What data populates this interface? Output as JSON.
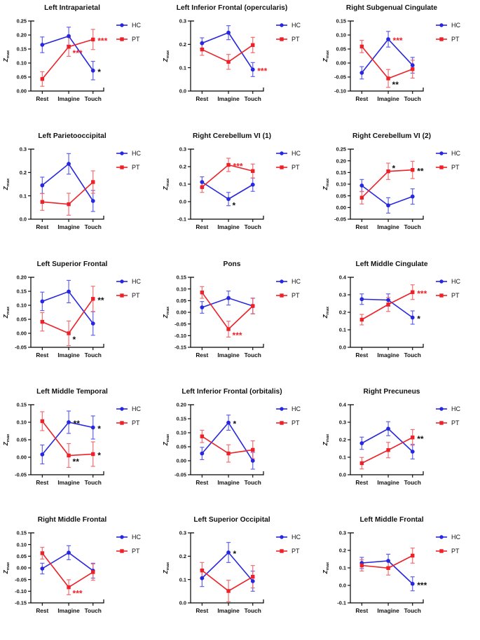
{
  "figure": {
    "ylabel": {
      "text": "Z",
      "sub": "max"
    },
    "x_categories": [
      "Rest",
      "Imagine",
      "Touch"
    ],
    "legend": [
      {
        "label": "HC",
        "marker": "circle"
      },
      {
        "label": "PT",
        "marker": "square"
      }
    ]
  },
  "style": {
    "hc_color": "#2727e0",
    "pt_color": "#ee2128",
    "hc_err_color": "#5b5bee",
    "pt_err_color": "#f2686c",
    "annotation_red": "#ee2128",
    "annotation_black": "#111111",
    "axis_color": "#000000"
  },
  "chart_data": [
    {
      "type": "line",
      "title": "Left Intraparietal",
      "categories": [
        "Rest",
        "Imagine",
        "Touch"
      ],
      "ylim": [
        0.0,
        0.25
      ],
      "ystep": 0.05,
      "decimals": 2,
      "series": [
        {
          "name": "HC",
          "values": [
            0.165,
            0.196,
            0.073
          ],
          "errors": [
            0.028,
            0.032,
            0.033
          ]
        },
        {
          "name": "PT",
          "values": [
            0.043,
            0.158,
            0.184
          ],
          "errors": [
            0.026,
            0.034,
            0.036
          ]
        }
      ],
      "annotations": [
        {
          "series": "pt",
          "x": 1,
          "text": "***",
          "color": "red",
          "placement": "below-right"
        },
        {
          "series": "pt",
          "x": 2,
          "text": "***",
          "color": "red",
          "placement": "right"
        },
        {
          "series": "hc",
          "x": 2,
          "text": "*",
          "color": "black",
          "placement": "right"
        }
      ]
    },
    {
      "type": "line",
      "title": "Left Inferior Frontal (opercularis)",
      "categories": [
        "Rest",
        "Imagine",
        "Touch"
      ],
      "ylim": [
        0.0,
        0.3
      ],
      "ystep": 0.1,
      "decimals": 1,
      "series": [
        {
          "name": "HC",
          "values": [
            0.205,
            0.25,
            0.092
          ],
          "errors": [
            0.023,
            0.03,
            0.03
          ]
        },
        {
          "name": "PT",
          "values": [
            0.178,
            0.125,
            0.197
          ],
          "errors": [
            0.025,
            0.032,
            0.033
          ]
        }
      ],
      "annotations": [
        {
          "series": "hc",
          "x": 2,
          "text": "***",
          "color": "red",
          "placement": "right"
        }
      ]
    },
    {
      "type": "line",
      "title": "Right Subgenual Cingulate",
      "categories": [
        "Rest",
        "Imagine",
        "Touch"
      ],
      "ylim": [
        -0.1,
        0.15
      ],
      "ystep": 0.05,
      "decimals": 2,
      "series": [
        {
          "name": "HC",
          "values": [
            -0.035,
            0.085,
            -0.008
          ],
          "errors": [
            0.022,
            0.028,
            0.028
          ]
        },
        {
          "name": "PT",
          "values": [
            0.059,
            -0.055,
            -0.022
          ],
          "errors": [
            0.022,
            0.032,
            0.032
          ]
        }
      ],
      "annotations": [
        {
          "series": "hc",
          "x": 1,
          "text": "***",
          "color": "red",
          "placement": "right"
        },
        {
          "series": "pt",
          "x": 1,
          "text": "**",
          "color": "black",
          "placement": "below-right"
        }
      ]
    },
    {
      "type": "line",
      "title": "Left Parietooccipital",
      "categories": [
        "Rest",
        "Imagine",
        "Touch"
      ],
      "ylim": [
        0.0,
        0.3
      ],
      "ystep": 0.1,
      "decimals": 1,
      "series": [
        {
          "name": "HC",
          "values": [
            0.145,
            0.237,
            0.078
          ],
          "errors": [
            0.035,
            0.044,
            0.045
          ]
        },
        {
          "name": "PT",
          "values": [
            0.074,
            0.064,
            0.159
          ],
          "errors": [
            0.036,
            0.047,
            0.048
          ]
        }
      ],
      "annotations": []
    },
    {
      "type": "line",
      "title": "Right Cerebellum VI (1)",
      "categories": [
        "Rest",
        "Imagine",
        "Touch"
      ],
      "ylim": [
        -0.1,
        0.3
      ],
      "ystep": 0.1,
      "decimals": 1,
      "series": [
        {
          "name": "HC",
          "values": [
            0.112,
            0.015,
            0.097
          ],
          "errors": [
            0.03,
            0.038,
            0.038
          ]
        },
        {
          "name": "PT",
          "values": [
            0.083,
            0.21,
            0.175
          ],
          "errors": [
            0.03,
            0.038,
            0.04
          ]
        }
      ],
      "annotations": [
        {
          "series": "pt",
          "x": 1,
          "text": "***",
          "color": "red",
          "placement": "right"
        },
        {
          "series": "hc",
          "x": 1,
          "text": "*",
          "color": "black",
          "placement": "below-right"
        }
      ]
    },
    {
      "type": "line",
      "title": "Right Cerebellum VI (2)",
      "categories": [
        "Rest",
        "Imagine",
        "Touch"
      ],
      "ylim": [
        -0.05,
        0.25
      ],
      "ystep": 0.05,
      "decimals": 2,
      "series": [
        {
          "name": "HC",
          "values": [
            0.094,
            0.009,
            0.047
          ],
          "errors": [
            0.026,
            0.033,
            0.033
          ]
        },
        {
          "name": "PT",
          "values": [
            0.042,
            0.155,
            0.161
          ],
          "errors": [
            0.027,
            0.035,
            0.037
          ]
        }
      ],
      "annotations": [
        {
          "series": "pt",
          "x": 1,
          "text": "*",
          "color": "black",
          "placement": "above-right"
        },
        {
          "series": "pt",
          "x": 2,
          "text": "**",
          "color": "black",
          "placement": "right"
        }
      ]
    },
    {
      "type": "line",
      "title": "Left Superior Frontal",
      "categories": [
        "Rest",
        "Imagine",
        "Touch"
      ],
      "ylim": [
        -0.05,
        0.2
      ],
      "ystep": 0.05,
      "decimals": 2,
      "series": [
        {
          "name": "HC",
          "values": [
            0.114,
            0.149,
            0.035
          ],
          "errors": [
            0.033,
            0.04,
            0.042
          ]
        },
        {
          "name": "PT",
          "values": [
            0.041,
            0.0,
            0.123
          ],
          "errors": [
            0.033,
            0.044,
            0.045
          ]
        }
      ],
      "annotations": [
        {
          "series": "pt",
          "x": 1,
          "text": "*",
          "color": "black",
          "placement": "below-right"
        },
        {
          "series": "pt",
          "x": 2,
          "text": "**",
          "color": "black",
          "placement": "right"
        }
      ]
    },
    {
      "type": "line",
      "title": "Pons",
      "categories": [
        "Rest",
        "Imagine",
        "Touch"
      ],
      "ylim": [
        -0.15,
        0.15
      ],
      "ystep": 0.05,
      "decimals": 2,
      "series": [
        {
          "name": "HC",
          "values": [
            0.021,
            0.061,
            0.027
          ],
          "errors": [
            0.025,
            0.03,
            0.033
          ]
        },
        {
          "name": "PT",
          "values": [
            0.085,
            -0.072,
            0.027
          ],
          "errors": [
            0.025,
            0.034,
            0.034
          ]
        }
      ],
      "annotations": [
        {
          "series": "pt",
          "x": 1,
          "text": "***",
          "color": "red",
          "placement": "below-right"
        }
      ]
    },
    {
      "type": "line",
      "title": "Left Middle Cingulate",
      "categories": [
        "Rest",
        "Imagine",
        "Touch"
      ],
      "ylim": [
        0.0,
        0.4
      ],
      "ystep": 0.1,
      "decimals": 1,
      "series": [
        {
          "name": "HC",
          "values": [
            0.275,
            0.27,
            0.17
          ],
          "errors": [
            0.03,
            0.035,
            0.038
          ]
        },
        {
          "name": "PT",
          "values": [
            0.158,
            0.245,
            0.315
          ],
          "errors": [
            0.03,
            0.04,
            0.042
          ]
        }
      ],
      "annotations": [
        {
          "series": "pt",
          "x": 2,
          "text": "***",
          "color": "red",
          "placement": "right"
        },
        {
          "series": "hc",
          "x": 2,
          "text": "*",
          "color": "black",
          "placement": "right"
        }
      ]
    },
    {
      "type": "line",
      "title": "Left Middle Temporal",
      "categories": [
        "Rest",
        "Imagine",
        "Touch"
      ],
      "ylim": [
        -0.05,
        0.15
      ],
      "ystep": 0.05,
      "decimals": 2,
      "series": [
        {
          "name": "HC",
          "values": [
            0.008,
            0.1,
            0.085
          ],
          "errors": [
            0.027,
            0.032,
            0.033
          ]
        },
        {
          "name": "PT",
          "values": [
            0.103,
            0.005,
            0.009
          ],
          "errors": [
            0.027,
            0.034,
            0.035
          ]
        }
      ],
      "annotations": [
        {
          "series": "hc",
          "x": 1,
          "text": "**",
          "color": "black",
          "placement": "right"
        },
        {
          "series": "hc",
          "x": 2,
          "text": "*",
          "color": "black",
          "placement": "right"
        },
        {
          "series": "pt",
          "x": 1,
          "text": "**",
          "color": "black",
          "placement": "below-right"
        },
        {
          "series": "pt",
          "x": 2,
          "text": "*",
          "color": "black",
          "placement": "right"
        }
      ]
    },
    {
      "type": "line",
      "title": "Left Inferior Frontal (orbitalis)",
      "categories": [
        "Rest",
        "Imagine",
        "Touch"
      ],
      "ylim": [
        -0.05,
        0.2
      ],
      "ystep": 0.05,
      "decimals": 2,
      "series": [
        {
          "name": "HC",
          "values": [
            0.026,
            0.136,
            0.0
          ],
          "errors": [
            0.022,
            0.027,
            0.03
          ]
        },
        {
          "name": "PT",
          "values": [
            0.087,
            0.026,
            0.039
          ],
          "errors": [
            0.022,
            0.031,
            0.032
          ]
        }
      ],
      "annotations": [
        {
          "series": "hc",
          "x": 1,
          "text": "*",
          "color": "black",
          "placement": "right"
        }
      ]
    },
    {
      "type": "line",
      "title": "Right Precuneus",
      "categories": [
        "Rest",
        "Imagine",
        "Touch"
      ],
      "ylim": [
        0.0,
        0.4
      ],
      "ystep": 0.1,
      "decimals": 1,
      "series": [
        {
          "name": "HC",
          "values": [
            0.18,
            0.263,
            0.132
          ],
          "errors": [
            0.035,
            0.04,
            0.042
          ]
        },
        {
          "name": "PT",
          "values": [
            0.066,
            0.141,
            0.213
          ],
          "errors": [
            0.033,
            0.044,
            0.045
          ]
        }
      ],
      "annotations": [
        {
          "series": "pt",
          "x": 2,
          "text": "**",
          "color": "black",
          "placement": "right"
        }
      ]
    },
    {
      "type": "line",
      "title": "Right Middle Frontal",
      "categories": [
        "Rest",
        "Imagine",
        "Touch"
      ],
      "ylim": [
        -0.15,
        0.15
      ],
      "ystep": 0.05,
      "decimals": 2,
      "series": [
        {
          "name": "HC",
          "values": [
            -0.003,
            0.065,
            -0.012
          ],
          "errors": [
            0.023,
            0.03,
            0.032
          ]
        },
        {
          "name": "PT",
          "values": [
            0.063,
            -0.083,
            -0.018
          ],
          "errors": [
            0.025,
            0.032,
            0.035
          ]
        }
      ],
      "annotations": [
        {
          "series": "pt",
          "x": 1,
          "text": "***",
          "color": "red",
          "placement": "below-right"
        }
      ]
    },
    {
      "type": "line",
      "title": "Left Superior Occipital",
      "categories": [
        "Rest",
        "Imagine",
        "Touch"
      ],
      "ylim": [
        0.0,
        0.3
      ],
      "ystep": 0.1,
      "decimals": 1,
      "series": [
        {
          "name": "HC",
          "values": [
            0.106,
            0.216,
            0.093
          ],
          "errors": [
            0.036,
            0.043,
            0.043
          ]
        },
        {
          "name": "PT",
          "values": [
            0.139,
            0.051,
            0.112
          ],
          "errors": [
            0.034,
            0.046,
            0.048
          ]
        }
      ],
      "annotations": [
        {
          "series": "hc",
          "x": 1,
          "text": "*",
          "color": "black",
          "placement": "right"
        }
      ]
    },
    {
      "type": "line",
      "title": "Left Middle Frontal",
      "categories": [
        "Rest",
        "Imagine",
        "Touch"
      ],
      "ylim": [
        -0.1,
        0.3
      ],
      "ystep": 0.1,
      "decimals": 1,
      "series": [
        {
          "name": "HC",
          "values": [
            0.128,
            0.14,
            0.009
          ],
          "errors": [
            0.032,
            0.038,
            0.04
          ]
        },
        {
          "name": "PT",
          "values": [
            0.114,
            0.099,
            0.17
          ],
          "errors": [
            0.032,
            0.04,
            0.043
          ]
        }
      ],
      "annotations": [
        {
          "series": "hc",
          "x": 2,
          "text": "***",
          "color": "black",
          "placement": "right"
        }
      ]
    }
  ]
}
